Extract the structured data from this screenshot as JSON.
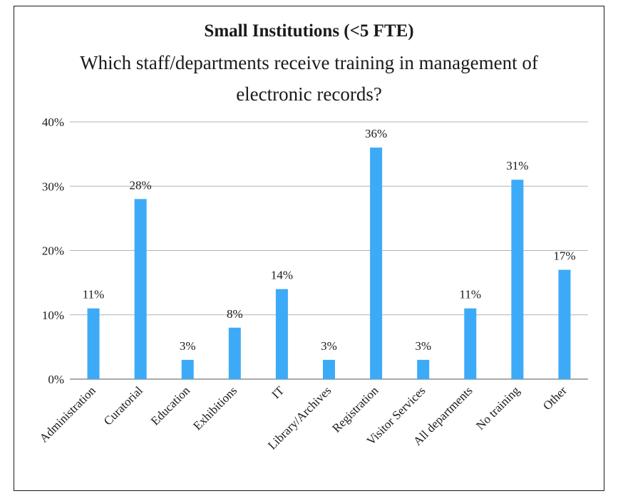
{
  "chart_data": {
    "type": "bar",
    "title": "Small Institutions (<5 FTE)",
    "subtitle": "Which staff/departments receive training in management of electronic records?",
    "categories": [
      "Administration",
      "Curatorial",
      "Education",
      "Exhibitions",
      "IT",
      "Library/Archives",
      "Registration",
      "Visitor Services",
      "All departments",
      "No training",
      "Other"
    ],
    "values": [
      11,
      28,
      3,
      8,
      14,
      3,
      36,
      3,
      11,
      31,
      17
    ],
    "data_labels": [
      "11%",
      "28%",
      "3%",
      "8%",
      "14%",
      "3%",
      "36%",
      "3%",
      "11%",
      "31%",
      "17%"
    ],
    "yticks": [
      0,
      10,
      20,
      30,
      40
    ],
    "ytick_labels": [
      "0%",
      "10%",
      "20%",
      "30%",
      "40%"
    ],
    "ylim": [
      0,
      40
    ],
    "xlabel": "",
    "ylabel": "",
    "grid": true,
    "legend": "none",
    "bar_color": "#3daaf8"
  }
}
